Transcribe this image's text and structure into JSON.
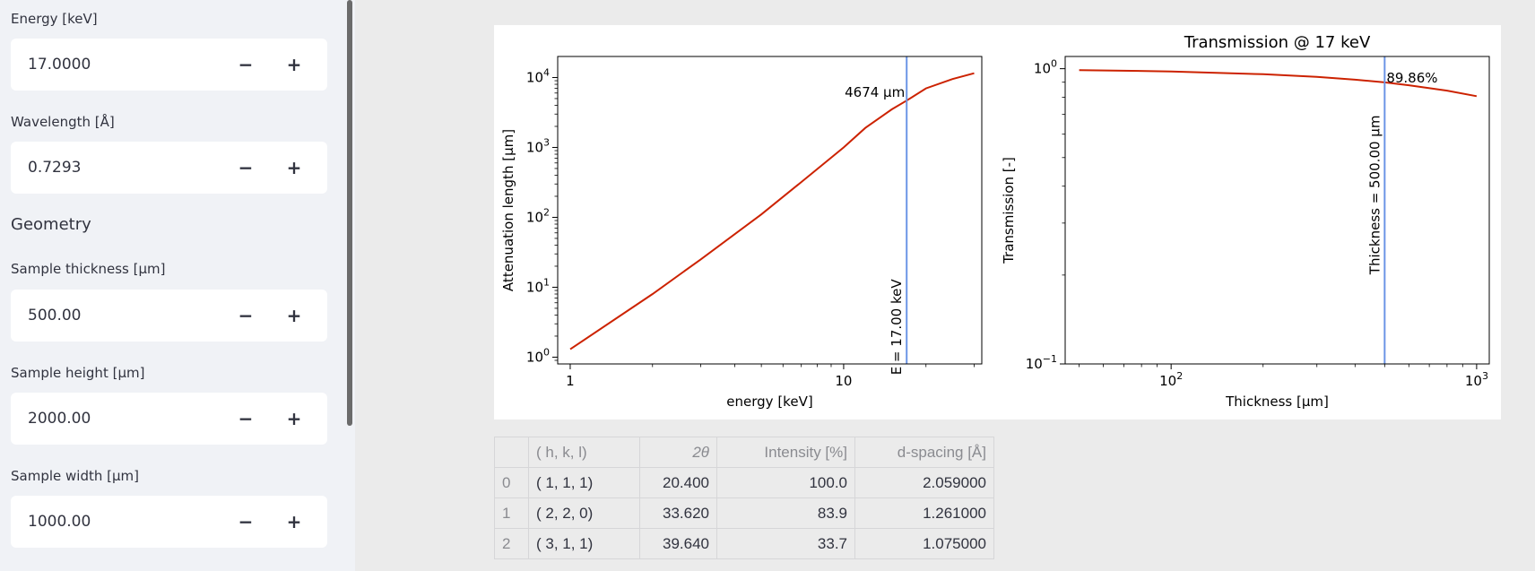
{
  "sidebar": {
    "energy": {
      "label": "Energy [keV]",
      "value": "17.0000"
    },
    "wavelength": {
      "label": "Wavelength [Å]",
      "value": "0.7293"
    },
    "geometry_header": "Geometry",
    "thickness": {
      "label": "Sample thickness [µm]",
      "value": "500.00"
    },
    "height": {
      "label": "Sample height [µm]",
      "value": "2000.00"
    },
    "width": {
      "label": "Sample width [µm]",
      "value": "1000.00"
    },
    "minus_label": "−",
    "plus_label": "+"
  },
  "chart_data": [
    {
      "type": "line",
      "xlabel": "energy [keV]",
      "ylabel": "Attenuation length [µm]",
      "x_scale": "log",
      "y_scale": "log",
      "xlim": [
        0.9,
        32
      ],
      "ylim": [
        0.8,
        20000
      ],
      "x_ticks": [
        "1",
        "10"
      ],
      "y_ticks": [
        "10^0",
        "10^1",
        "10^2",
        "10^3",
        "10^4"
      ],
      "series": [
        {
          "color": "#cc2200",
          "x": [
            1,
            2,
            3,
            5,
            7,
            10,
            12,
            15,
            17,
            20,
            25,
            30
          ],
          "y": [
            1.3,
            8,
            25,
            110,
            320,
            1000,
            1900,
            3500,
            4674,
            7000,
            9500,
            11500
          ]
        }
      ],
      "vline": {
        "x": 17,
        "color": "#6b95e6",
        "label": "E = 17.00 keV"
      },
      "annotation": "4674 µm"
    },
    {
      "type": "line",
      "title": "Transmission @ 17 keV",
      "xlabel": "Thickness [µm]",
      "ylabel": "Transmission [-]",
      "x_scale": "log",
      "y_scale": "log",
      "xlim": [
        45,
        1100
      ],
      "ylim": [
        0.1,
        1.1
      ],
      "x_ticks": [
        "10^2",
        "10^3"
      ],
      "y_ticks": [
        "10^0",
        "10^-1"
      ],
      "series": [
        {
          "color": "#cc2200",
          "x": [
            50,
            100,
            200,
            300,
            400,
            500,
            600,
            800,
            1000
          ],
          "y": [
            0.989,
            0.979,
            0.958,
            0.938,
            0.918,
            0.8986,
            0.879,
            0.843,
            0.807
          ]
        }
      ],
      "vline": {
        "x": 500,
        "color": "#6b95e6",
        "label": "Thickness = 500.00 µm"
      },
      "annotation": "89.86%"
    }
  ],
  "table": {
    "headers": [
      "",
      "( h, k, l)",
      "2θ",
      "Intensity [%]",
      "d-spacing [Å]"
    ],
    "rows": [
      [
        "0",
        "( 1, 1, 1)",
        "20.400",
        "100.0",
        "2.059000"
      ],
      [
        "1",
        "( 2, 2, 0)",
        "33.620",
        "83.9",
        "1.261000"
      ],
      [
        "2",
        "( 3, 1, 1)",
        "39.640",
        "33.7",
        "1.075000"
      ]
    ]
  }
}
